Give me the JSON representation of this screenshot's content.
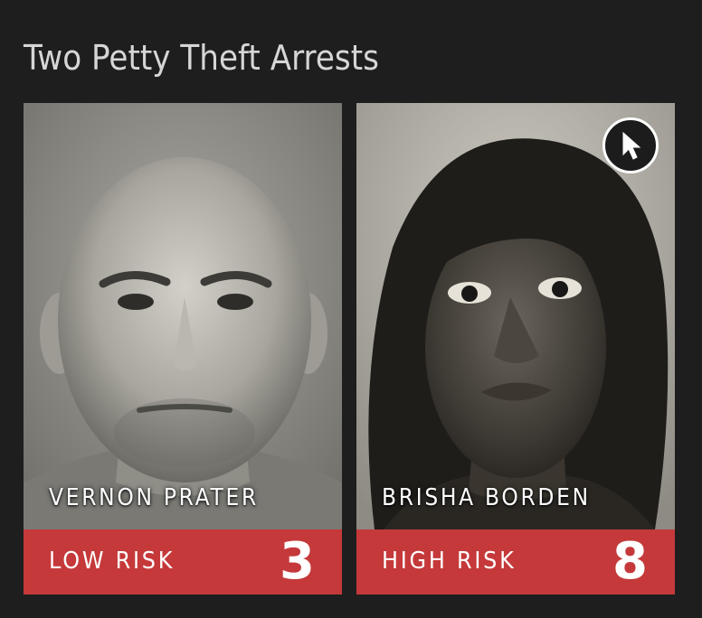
{
  "header": {
    "title": "Two Petty Theft Arrests"
  },
  "cards": [
    {
      "name": "VERNON PRATER",
      "risk_label": "LOW RISK",
      "risk_score": "3"
    },
    {
      "name": "BRISHA BORDEN",
      "risk_label": "HIGH RISK",
      "risk_score": "8"
    }
  ],
  "colors": {
    "background": "#1e1e1e",
    "title_text": "#d6d6d6",
    "risk_bar": "#c5393a",
    "text_white": "#ffffff"
  },
  "icons": {
    "cursor_button": "pointer-cursor-icon"
  }
}
